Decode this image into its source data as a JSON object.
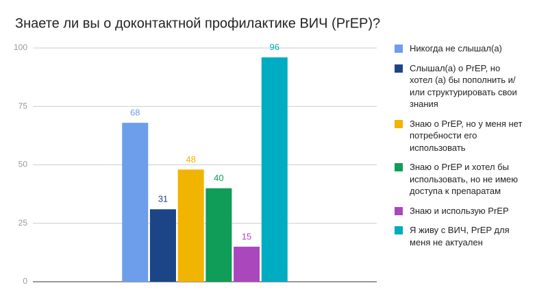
{
  "chart_data": {
    "type": "bar",
    "title": "Знаете ли вы о доконтактной профилактике ВИЧ (PrEP)?",
    "categories": [
      null
    ],
    "series": [
      {
        "name": "Никогда не слышал(а)",
        "color": "#6d9eeb",
        "values": [
          68
        ]
      },
      {
        "name": "Слышал(а) о PrEP, но хотел (а) бы пополнить и/или структурировать свои знания",
        "color": "#1c4587",
        "values": [
          31
        ]
      },
      {
        "name": "Знаю о PrEP, но у меня нет потребности его использовать",
        "color": "#f1b400",
        "values": [
          48
        ]
      },
      {
        "name": "Знаю о PrEP и хотел бы использовать, но не имею доступа к препаратам",
        "color": "#0f9d58",
        "values": [
          40
        ]
      },
      {
        "name": "Знаю и использую PrEP",
        "color": "#ab47bc",
        "values": [
          15
        ]
      },
      {
        "name": "Я живу с ВИЧ, PrEP для меня не актуален",
        "color": "#00acc1",
        "values": [
          96
        ]
      }
    ],
    "ylim": [
      0,
      100
    ],
    "yticks": [
      0,
      25,
      50,
      75,
      100
    ],
    "grid": true,
    "legend": "right"
  }
}
